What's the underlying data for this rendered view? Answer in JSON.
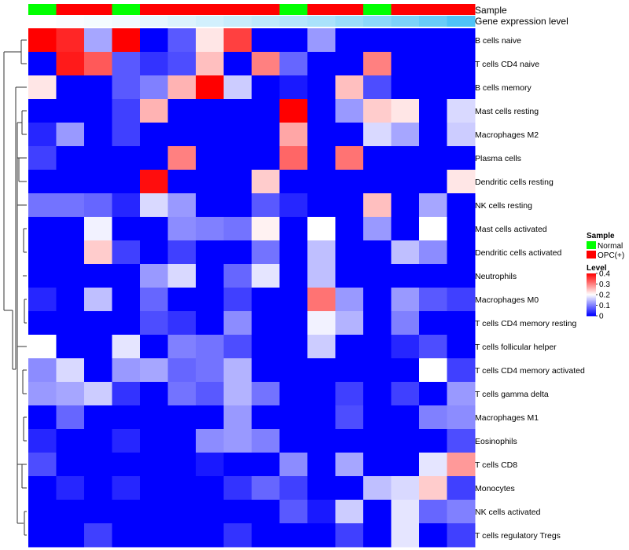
{
  "chart_data": {
    "type": "heatmap",
    "title": "",
    "rows": [
      "B cells naive",
      "T cells CD4 naive",
      "B cells memory",
      "Mast cells resting",
      "Macrophages M2",
      "Plasma cells",
      "Dendritic cells resting",
      "NK cells resting",
      "Mast cells activated",
      "Dendritic cells activated",
      "Neutrophils",
      "Macrophages M0",
      "T cells CD4 memory resting",
      "T cells follicular helper",
      "T cells CD4 memory activated",
      "T cells gamma delta",
      "Macrophages M1",
      "Eosinophils",
      "T cells CD8",
      "Monocytes",
      "NK cells activated",
      "T cells regulatory  Tregs"
    ],
    "column_sample": [
      "Normal",
      "OPC(+)",
      "OPC(+)",
      "Normal",
      "OPC(+)",
      "OPC(+)",
      "OPC(+)",
      "OPC(+)",
      "OPC(+)",
      "Normal",
      "OPC(+)",
      "OPC(+)",
      "Normal",
      "OPC(+)",
      "OPC(+)",
      "OPC(+)"
    ],
    "column_expression": [
      0.01,
      0.02,
      0.03,
      0.04,
      0.06,
      0.08,
      0.1,
      0.12,
      0.14,
      0.16,
      0.18,
      0.21,
      0.24,
      0.27,
      0.31,
      0.36
    ],
    "values": [
      [
        0.4,
        0.37,
        0.13,
        0.4,
        0.0,
        0.07,
        0.22,
        0.35,
        0.0,
        0.0,
        0.12,
        0.0,
        0.0,
        0.0,
        0.0,
        0.0
      ],
      [
        0.0,
        0.38,
        0.33,
        0.07,
        0.04,
        0.06,
        0.25,
        0.0,
        0.3,
        0.08,
        0.0,
        0.0,
        0.3,
        0.0,
        0.0,
        0.0
      ],
      [
        0.22,
        0.0,
        0.0,
        0.07,
        0.1,
        0.26,
        0.4,
        0.16,
        0.0,
        0.02,
        0.0,
        0.25,
        0.06,
        0.0,
        0.0,
        0.0
      ],
      [
        0.0,
        0.0,
        0.0,
        0.05,
        0.26,
        0.0,
        0.0,
        0.0,
        0.0,
        0.4,
        0.0,
        0.12,
        0.24,
        0.22,
        0.0,
        0.17
      ],
      [
        0.03,
        0.12,
        0.0,
        0.05,
        0.0,
        0.0,
        0.0,
        0.0,
        0.0,
        0.27,
        0.0,
        0.0,
        0.17,
        0.13,
        0.0,
        0.16
      ],
      [
        0.05,
        0.0,
        0.0,
        0.0,
        0.0,
        0.3,
        0.0,
        0.0,
        0.0,
        0.32,
        0.0,
        0.31,
        0.0,
        0.0,
        0.0,
        0.0
      ],
      [
        0.0,
        0.0,
        0.0,
        0.0,
        0.39,
        0.0,
        0.0,
        0.0,
        0.24,
        0.0,
        0.0,
        0.0,
        0.0,
        0.0,
        0.0,
        0.22
      ],
      [
        0.09,
        0.09,
        0.08,
        0.03,
        0.17,
        0.12,
        0.0,
        0.0,
        0.07,
        0.03,
        0.0,
        0.0,
        0.25,
        0.0,
        0.13,
        0.0
      ],
      [
        0.0,
        0.0,
        0.19,
        0.0,
        0.0,
        0.11,
        0.1,
        0.09,
        0.21,
        0.0,
        0.2,
        0.0,
        0.12,
        0.0,
        0.2,
        0.0
      ],
      [
        0.0,
        0.0,
        0.24,
        0.05,
        0.0,
        0.05,
        0.0,
        0.0,
        0.09,
        0.0,
        0.15,
        0.0,
        0.0,
        0.15,
        0.11,
        0.0
      ],
      [
        0.0,
        0.0,
        0.0,
        0.0,
        0.12,
        0.17,
        0.0,
        0.08,
        0.18,
        0.0,
        0.15,
        0.0,
        0.0,
        0.0,
        0.0,
        0.0
      ],
      [
        0.03,
        0.0,
        0.15,
        0.0,
        0.08,
        0.0,
        0.0,
        0.05,
        0.0,
        0.0,
        0.31,
        0.12,
        0.0,
        0.12,
        0.07,
        0.05
      ],
      [
        0.0,
        0.0,
        0.0,
        0.0,
        0.06,
        0.04,
        0.0,
        0.11,
        0.0,
        0.0,
        0.19,
        0.14,
        0.0,
        0.1,
        0.0,
        0.0
      ],
      [
        0.2,
        0.0,
        0.0,
        0.18,
        0.0,
        0.1,
        0.09,
        0.06,
        0.0,
        0.0,
        0.16,
        0.0,
        0.0,
        0.03,
        0.06,
        0.0
      ],
      [
        0.11,
        0.17,
        0.0,
        0.12,
        0.13,
        0.08,
        0.09,
        0.14,
        0.0,
        0.0,
        0.0,
        0.0,
        0.0,
        0.0,
        0.2,
        0.05
      ],
      [
        0.12,
        0.13,
        0.16,
        0.04,
        0.0,
        0.09,
        0.07,
        0.14,
        0.09,
        0.0,
        0.0,
        0.05,
        0.0,
        0.05,
        0.0,
        0.12
      ],
      [
        0.0,
        0.08,
        0.0,
        0.0,
        0.0,
        0.0,
        0.0,
        0.12,
        0.0,
        0.0,
        0.0,
        0.06,
        0.0,
        0.0,
        0.1,
        0.11
      ],
      [
        0.03,
        0.0,
        0.0,
        0.03,
        0.0,
        0.0,
        0.11,
        0.12,
        0.1,
        0.0,
        0.0,
        0.0,
        0.0,
        0.0,
        0.0,
        0.06
      ],
      [
        0.06,
        0.0,
        0.0,
        0.0,
        0.0,
        0.0,
        0.02,
        0.0,
        0.0,
        0.11,
        0.0,
        0.13,
        0.0,
        0.0,
        0.18,
        0.28
      ],
      [
        0.0,
        0.03,
        0.0,
        0.03,
        0.0,
        0.0,
        0.0,
        0.04,
        0.08,
        0.05,
        0.0,
        0.0,
        0.15,
        0.17,
        0.24,
        0.05
      ],
      [
        0.0,
        0.0,
        0.0,
        0.0,
        0.0,
        0.0,
        0.0,
        0.0,
        0.0,
        0.07,
        0.02,
        0.16,
        0.0,
        0.18,
        0.08,
        0.1
      ],
      [
        0.0,
        0.0,
        0.05,
        0.0,
        0.0,
        0.0,
        0.0,
        0.04,
        0.0,
        0.0,
        0.0,
        0.05,
        0.0,
        0.18,
        0.0,
        0.05
      ]
    ],
    "annotation_labels": {
      "sample": "Sample",
      "expression": "Gene expression level"
    },
    "legend": {
      "sample_title": "Sample",
      "sample_entries": [
        {
          "label": "Normal",
          "color": "#00ff00"
        },
        {
          "label": "OPC(+)",
          "color": "#ff0000"
        }
      ],
      "level_title": "Level",
      "level_ticks": [
        {
          "value": 0.4,
          "label": "0.4"
        },
        {
          "value": 0.3,
          "label": "0.3"
        },
        {
          "value": 0.2,
          "label": "0.2"
        },
        {
          "value": 0.1,
          "label": "0.1"
        },
        {
          "value": 0,
          "label": "0"
        }
      ]
    },
    "value_range": [
      0,
      0.4
    ],
    "colors": {
      "low": "#0000ff",
      "mid": "#ffffff",
      "high": "#ff0000",
      "annot_low": "#ffffff",
      "annot_high": "#4fc3f7"
    }
  }
}
